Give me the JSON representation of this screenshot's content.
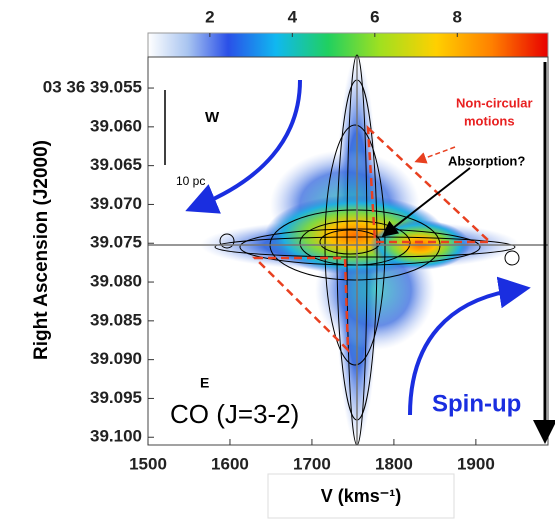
{
  "chart_data": {
    "type": "image",
    "xlabel": "V (kms⁻¹)",
    "ylabel": "Right Ascension (J2000)",
    "xlim": [
      1500,
      1988
    ],
    "xticks": [
      1500,
      1600,
      1700,
      1800,
      1900
    ],
    "ylim": [
      39.051,
      39.101
    ],
    "yticks": [
      {
        "value": 39.055,
        "label": "03 36 39.055"
      },
      {
        "value": 39.06,
        "label": "39.060"
      },
      {
        "value": 39.065,
        "label": "39.065"
      },
      {
        "value": 39.07,
        "label": "39.070"
      },
      {
        "value": 39.075,
        "label": "39.075"
      },
      {
        "value": 39.08,
        "label": "39.080"
      },
      {
        "value": 39.085,
        "label": "39.085"
      },
      {
        "value": 39.09,
        "label": "39.090"
      },
      {
        "value": 39.095,
        "label": "39.095"
      },
      {
        "value": 39.1,
        "label": "39.100"
      }
    ],
    "colorbar": {
      "lim": [
        0.5,
        10.2
      ],
      "ticks": [
        2,
        4,
        6,
        8
      ]
    },
    "annotations": [
      "W",
      "10 pc",
      "E",
      "CO (J=3-2)",
      "Non-circular",
      "motions",
      "Absorption?",
      "Spin-up"
    ]
  }
}
